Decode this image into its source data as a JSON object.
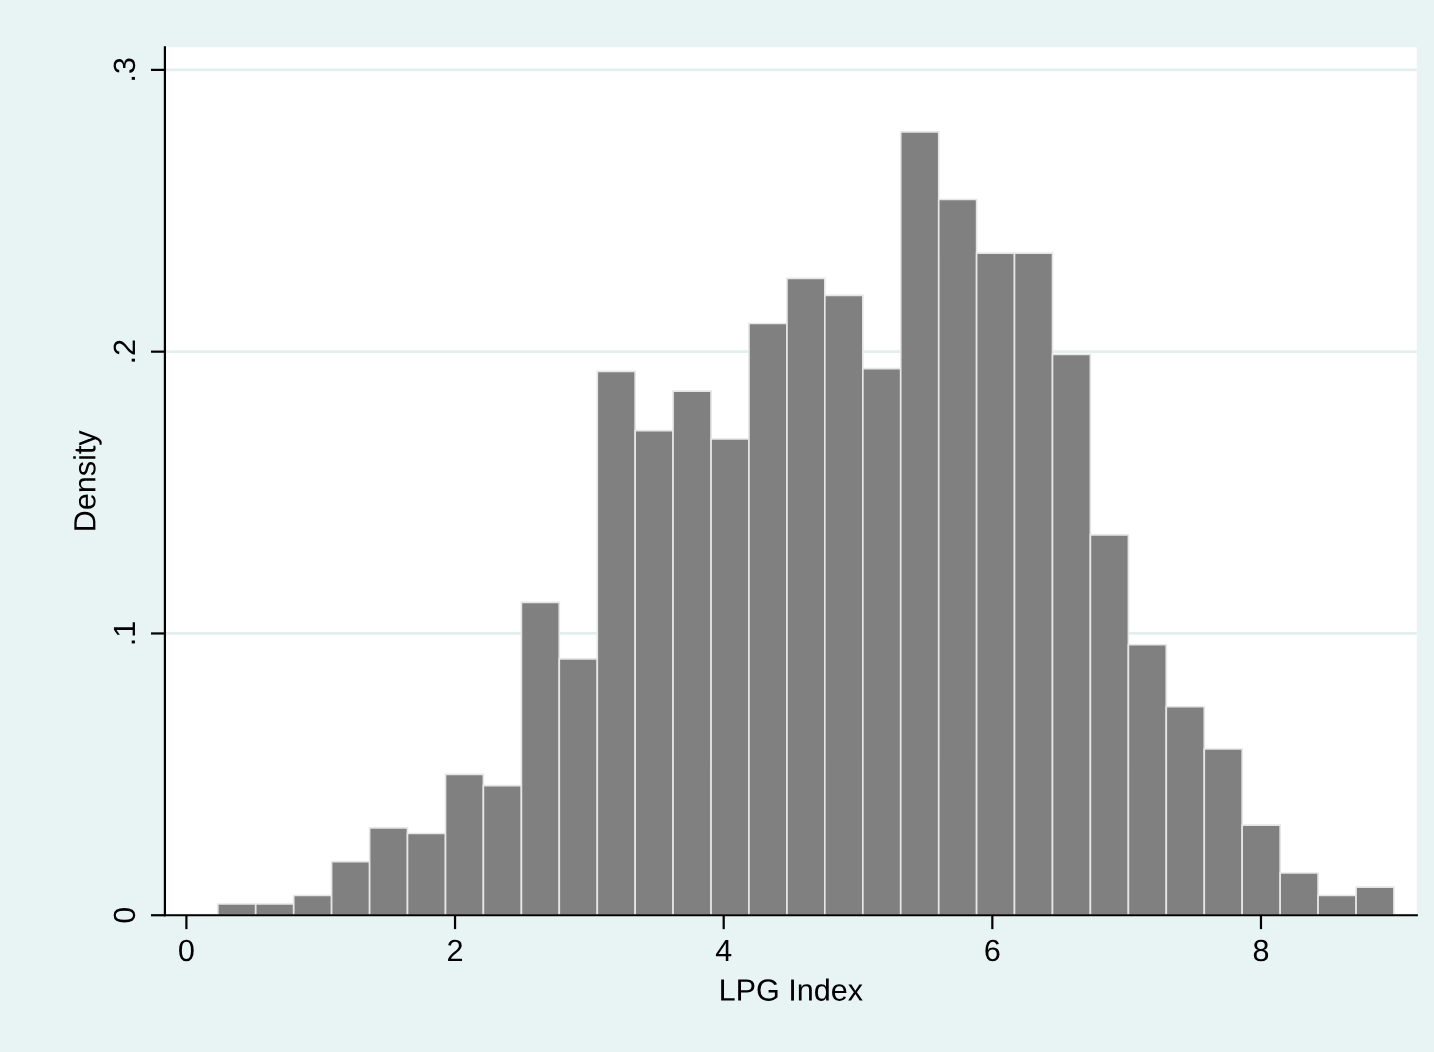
{
  "chart_data": {
    "type": "histogram",
    "xlabel": "LPG Index",
    "ylabel": "Density",
    "bins": [
      0.234,
      0.516,
      0.799,
      1.081,
      1.364,
      1.646,
      1.929,
      2.211,
      2.494,
      2.776,
      3.059,
      3.341,
      3.623,
      3.906,
      4.188,
      4.471,
      4.753,
      5.036,
      5.318,
      5.601,
      5.883,
      6.165,
      6.448,
      6.73,
      7.013,
      7.295,
      7.578,
      7.86,
      8.143,
      8.425,
      8.708,
      8.99
    ],
    "values": [
      0.004,
      0.004,
      0.007,
      0.019,
      0.031,
      0.029,
      0.05,
      0.046,
      0.111,
      0.091,
      0.193,
      0.172,
      0.186,
      0.169,
      0.21,
      0.226,
      0.22,
      0.194,
      0.278,
      0.254,
      0.235,
      0.235,
      0.199,
      0.135,
      0.096,
      0.074,
      0.059,
      0.032,
      0.015,
      0.007,
      0.01
    ],
    "color": "#808080",
    "xlim": [
      -0.16,
      9.16
    ],
    "ylim": [
      0,
      0.308
    ],
    "xticks": [
      0,
      2,
      4,
      6,
      8
    ],
    "yticks": [
      0,
      {
        "value": 0.1,
        "label": ".1"
      },
      {
        "value": 0.2,
        "label": ".2"
      },
      {
        "value": 0.3,
        "label": ".3"
      }
    ],
    "grid": "y"
  }
}
